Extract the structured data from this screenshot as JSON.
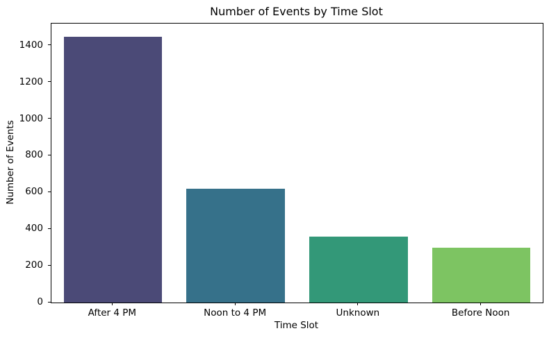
{
  "chart_data": {
    "type": "bar",
    "title": "Number of Events by Time Slot",
    "xlabel": "Time Slot",
    "ylabel": "Number of Events",
    "categories": [
      "After 4 PM",
      "Noon to 4 PM",
      "Unknown",
      "Before Noon"
    ],
    "values": [
      1450,
      620,
      360,
      300
    ],
    "bar_colors": [
      "#4b4a77",
      "#36718a",
      "#339878",
      "#7dc462"
    ],
    "yticks": [
      0,
      200,
      400,
      600,
      800,
      1000,
      1200,
      1400
    ],
    "ylim": [
      0,
      1520
    ],
    "grid": false,
    "legend": "none",
    "axis_color": "#000000",
    "background_color": "#ffffff"
  }
}
